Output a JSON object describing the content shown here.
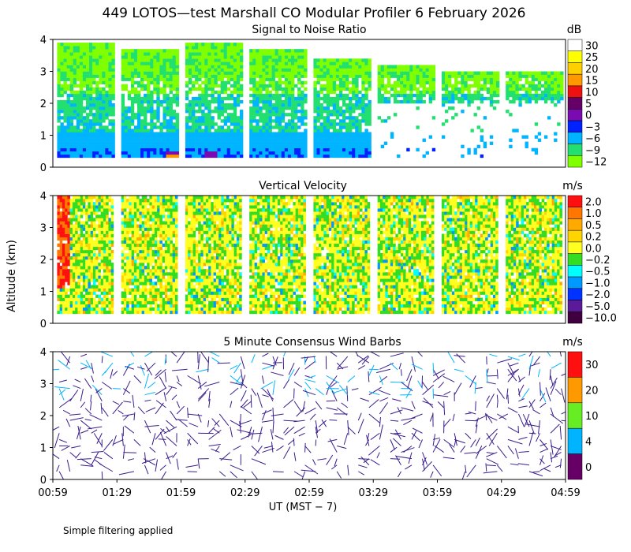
{
  "chart_data": {
    "type": "heatmap",
    "title": "449 LOTOS—test Marshall CO Modular Profiler  6 February 2026",
    "xlabel": "UT  (MST − 7)",
    "ylabel": "Altitude (km)",
    "x_ticks": [
      "00:59",
      "01:29",
      "01:59",
      "02:29",
      "02:59",
      "03:29",
      "03:59",
      "04:29",
      "04:59"
    ],
    "y_ticks": [
      "0",
      "1",
      "2",
      "3",
      "4"
    ],
    "xlim": [
      "00:59",
      "04:59"
    ],
    "ylim": [
      0,
      4
    ],
    "panels": [
      {
        "title": "Signal to Noise Ratio",
        "unit": "dB",
        "colorbar": [
          {
            "label": "30",
            "color": "#ffffff"
          },
          {
            "label": "25",
            "color": "#ffff00"
          },
          {
            "label": "20",
            "color": "#ffd000"
          },
          {
            "label": "15",
            "color": "#ff9900"
          },
          {
            "label": "10",
            "color": "#ee1111"
          },
          {
            "label": "5",
            "color": "#660066"
          },
          {
            "label": "0",
            "color": "#7a0bb0"
          },
          {
            "label": "−3",
            "color": "#0022ff"
          },
          {
            "label": "−6",
            "color": "#00b4ff"
          },
          {
            "label": "−9",
            "color": "#22e070"
          },
          {
            "label": "−12",
            "color": "#80ff00"
          }
        ]
      },
      {
        "title": "Vertical Velocity",
        "unit": "m/s",
        "colorbar": [
          {
            "label": "2.0",
            "color": "#ff1010"
          },
          {
            "label": "1.0",
            "color": "#ff7700"
          },
          {
            "label": "0.5",
            "color": "#ffaa00"
          },
          {
            "label": "0.2",
            "color": "#ffd500"
          },
          {
            "label": "0.0",
            "color": "#ffff20"
          },
          {
            "label": "−0.2",
            "color": "#33dd22"
          },
          {
            "label": "−0.5",
            "color": "#00ffff"
          },
          {
            "label": "−1.0",
            "color": "#0099ff"
          },
          {
            "label": "−2.0",
            "color": "#0033ff"
          },
          {
            "label": "−5.0",
            "color": "#5a1a9a"
          },
          {
            "label": "−10.0",
            "color": "#400040"
          }
        ]
      },
      {
        "title": "5 Minute Consensus Wind Barbs",
        "unit": "m/s",
        "colorbar": [
          {
            "label": "30",
            "color": "#ff1010"
          },
          {
            "label": "20",
            "color": "#ff9900"
          },
          {
            "label": "10",
            "color": "#66ee22"
          },
          {
            "label": "4",
            "color": "#00b4ff"
          },
          {
            "label": "0",
            "color": "#660066"
          }
        ]
      }
    ]
  },
  "footer_note": "Simple filtering applied"
}
